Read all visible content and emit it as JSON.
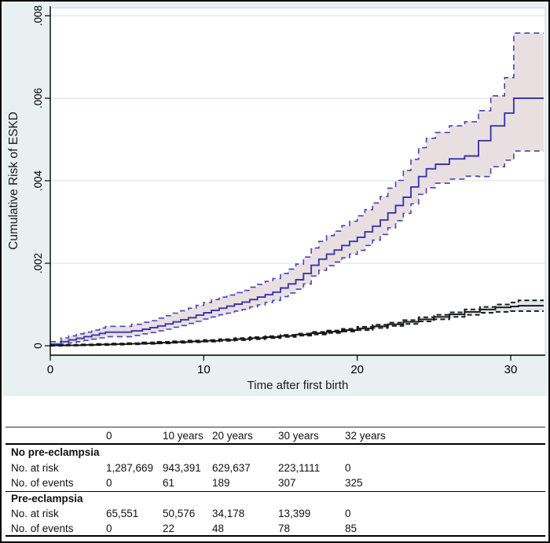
{
  "figure": {
    "bg": "#e9f0f1",
    "plot_bg": "#ffffff",
    "grid_color": "#dfe8ea",
    "frame_color": "#c9d6d8",
    "axis_color": "#000000"
  },
  "chart_data": {
    "type": "line",
    "subtype": "step-cumulative-incidence-with-ci",
    "title": "",
    "xlabel": "Time after first birth",
    "ylabel": "Cumulative Risk of ESKD",
    "xlim": [
      0,
      32.15
    ],
    "ylim": [
      0,
      0.008
    ],
    "xticks": [
      0,
      10,
      20,
      30
    ],
    "yticks": [
      0,
      0.002,
      0.004,
      0.006,
      0.008
    ],
    "ytick_labels": [
      "0",
      ".002",
      ".004",
      ".006",
      ".008"
    ],
    "grid": true,
    "legend_position": "none",
    "series": [
      {
        "name": "Pre-eclampsia",
        "line_color": "#3838ac",
        "ci_line_color": "#4646b4",
        "ci_fill": "#e9dfe1",
        "x": [
          0,
          0.7,
          1.2,
          1.7,
          2.2,
          2.7,
          3.2,
          3.6,
          5.3,
          6.0,
          6.5,
          7.0,
          7.5,
          8.0,
          8.5,
          9.0,
          9.5,
          10.0,
          10.5,
          11.0,
          11.5,
          12.0,
          12.5,
          13.0,
          13.5,
          14.0,
          14.5,
          15.0,
          15.5,
          16.0,
          16.5,
          17.0,
          17.5,
          18.0,
          18.5,
          19.0,
          19.5,
          20.0,
          20.5,
          21.0,
          21.5,
          22.0,
          22.5,
          23.0,
          23.5,
          24.0,
          24.5,
          25.1,
          26.0,
          27.0,
          27.9,
          28.7,
          29.6,
          30.2,
          32.15
        ],
        "y": [
          4e-05,
          0.0001,
          0.00014,
          0.00018,
          0.00022,
          0.00026,
          0.0003,
          0.00033,
          0.00036,
          0.0004,
          0.00044,
          0.00048,
          0.00053,
          0.00058,
          0.00063,
          0.00068,
          0.00074,
          0.0008,
          0.00086,
          0.00091,
          0.00096,
          0.00101,
          0.00106,
          0.00112,
          0.00118,
          0.00124,
          0.0013,
          0.0014,
          0.0015,
          0.0016,
          0.00175,
          0.00195,
          0.0021,
          0.00222,
          0.00232,
          0.00243,
          0.00253,
          0.00263,
          0.00276,
          0.0029,
          0.00305,
          0.00322,
          0.0034,
          0.0036,
          0.00385,
          0.0041,
          0.00429,
          0.0044,
          0.00453,
          0.0046,
          0.00497,
          0.00533,
          0.00564,
          0.006,
          0.006
        ],
        "upper": [
          0.0001,
          0.00019,
          0.00024,
          0.00029,
          0.00033,
          0.00038,
          0.00043,
          0.00047,
          0.00052,
          0.00057,
          0.00061,
          0.00067,
          0.00073,
          0.00079,
          0.00085,
          0.00091,
          0.00098,
          0.00105,
          0.00112,
          0.00118,
          0.00123,
          0.00129,
          0.00134,
          0.00142,
          0.00149,
          0.00156,
          0.00163,
          0.00175,
          0.00186,
          0.00198,
          0.00215,
          0.00237,
          0.00253,
          0.00267,
          0.00278,
          0.00291,
          0.00302,
          0.00315,
          0.0033,
          0.00346,
          0.00362,
          0.00382,
          0.00401,
          0.00425,
          0.00452,
          0.0048,
          0.00503,
          0.00517,
          0.00533,
          0.00543,
          0.0057,
          0.00606,
          0.0065,
          0.00758,
          0.00758
        ],
        "lower": [
          1e-05,
          4e-05,
          7e-05,
          0.0001,
          0.00013,
          0.00016,
          0.00019,
          0.00022,
          0.00025,
          0.00029,
          0.00032,
          0.00036,
          0.0004,
          0.00045,
          0.00049,
          0.00054,
          0.00059,
          0.00065,
          0.0007,
          0.00075,
          0.00079,
          0.00084,
          0.00088,
          0.00094,
          0.00099,
          0.00105,
          0.0011,
          0.00119,
          0.00128,
          0.00137,
          0.0015,
          0.00169,
          0.00183,
          0.00194,
          0.00203,
          0.00213,
          0.00222,
          0.00231,
          0.00243,
          0.00256,
          0.0027,
          0.00286,
          0.00303,
          0.00321,
          0.00344,
          0.00367,
          0.00383,
          0.00394,
          0.00404,
          0.00411,
          0.0041,
          0.00434,
          0.0045,
          0.00472,
          0.00472
        ]
      },
      {
        "name": "No pre-eclampsia",
        "line_color": "#161616",
        "ci_line_color": "#1c1c1c",
        "ci_fill": "#e2e7e9",
        "x": [
          0,
          1,
          2,
          3,
          4,
          5,
          6,
          7,
          8,
          9,
          10,
          11,
          12,
          13,
          14,
          15,
          16,
          17,
          18,
          19,
          20,
          21,
          22,
          23,
          24,
          25,
          26,
          27,
          28,
          29,
          30,
          30.5,
          32.15
        ],
        "y": [
          1e-05,
          1.2e-05,
          2e-05,
          3e-05,
          4e-05,
          5e-05,
          6e-05,
          7.5e-05,
          9e-05,
          0.000105,
          0.00012,
          0.00014,
          0.00016,
          0.000185,
          0.00021,
          0.00024,
          0.00027,
          0.000305,
          0.00034,
          0.00038,
          0.00042,
          0.00047,
          0.00052,
          0.00058,
          0.00064,
          0.0007,
          0.00076,
          0.00082,
          0.00088,
          0.00093,
          0.00095,
          0.00097,
          0.00097
        ],
        "upper": [
          2e-05,
          2.5e-05,
          3.5e-05,
          4.5e-05,
          5.5e-05,
          6.5e-05,
          8e-05,
          9.5e-05,
          0.00011,
          0.000125,
          0.00014,
          0.00016,
          0.000185,
          0.00021,
          0.000235,
          0.000265,
          0.000295,
          0.000335,
          0.00037,
          0.00041,
          0.00046,
          0.00051,
          0.00056,
          0.00062,
          0.00069,
          0.00075,
          0.00081,
          0.00088,
          0.00094,
          0.001,
          0.00105,
          0.0011,
          0.0011
        ],
        "lower": [
          0.0,
          5e-06,
          1e-05,
          1.8e-05,
          2.7e-05,
          3.6e-05,
          4.5e-05,
          5.7e-05,
          7e-05,
          8.5e-05,
          0.0001,
          0.00012,
          0.000135,
          0.00016,
          0.000185,
          0.000215,
          0.000245,
          0.000275,
          0.00031,
          0.000345,
          0.00038,
          0.00043,
          0.00048,
          0.00053,
          0.00059,
          0.00064,
          0.0007,
          0.00075,
          0.0008,
          0.00082,
          0.00084,
          0.00084,
          0.00084
        ]
      }
    ]
  },
  "table": {
    "columns": [
      "",
      "0",
      "10 years",
      "20 years",
      "30 years",
      "32 years"
    ],
    "rows": [
      {
        "label": "No pre-eclampsia",
        "cells": [
          "",
          "",
          "",
          "",
          ""
        ]
      },
      {
        "label": "No. at risk",
        "cells": [
          "1,287,669",
          "943,391",
          "629,637",
          "223,1111",
          "0"
        ]
      },
      {
        "label": "No. of events",
        "cells": [
          "0",
          "61",
          "189",
          "307",
          "325"
        ]
      },
      {
        "label": "Pre-eclampsia",
        "cells": [
          "",
          "",
          "",
          "",
          ""
        ]
      },
      {
        "label": "No. at risk",
        "cells": [
          "65,551",
          "50,576",
          "34,178",
          "13,399",
          "0"
        ]
      },
      {
        "label": "No. of events",
        "cells": [
          "0",
          "22",
          "48",
          "78",
          "85"
        ]
      }
    ]
  }
}
